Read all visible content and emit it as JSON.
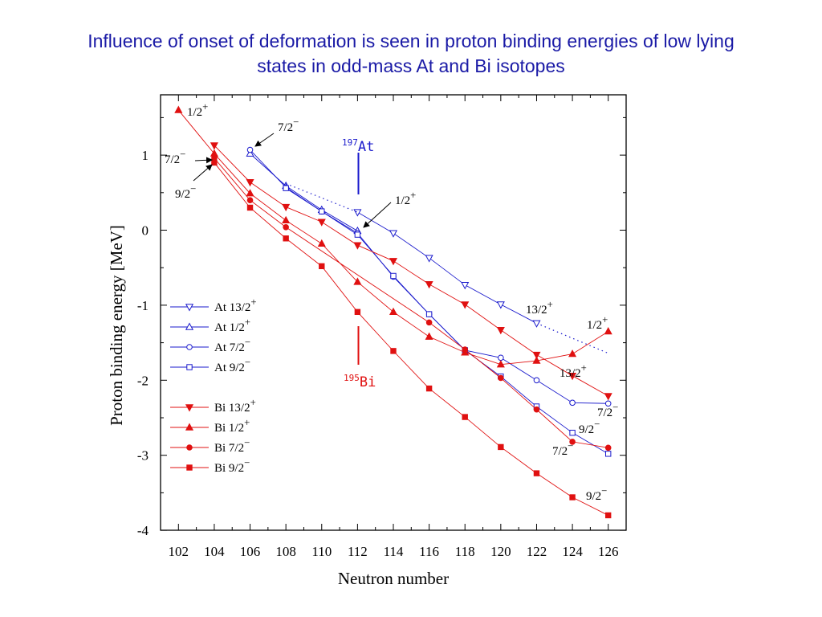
{
  "slide": {
    "title_line1": "Influence of onset of deformation is seen in proton binding energies of low lying",
    "title_line2": "states in odd-mass At and Bi isotopes"
  },
  "chart_data": {
    "type": "line",
    "xlabel": "Neutron number",
    "ylabel": "Proton binding energy [MeV]",
    "xlim": [
      101,
      127
    ],
    "ylim": [
      -4,
      1.6
    ],
    "x_ticks": [
      102,
      104,
      106,
      108,
      110,
      112,
      114,
      116,
      118,
      120,
      122,
      124,
      126
    ],
    "y_ticks": [
      1,
      0,
      -1,
      -2,
      -3,
      -4
    ],
    "grid": false,
    "legend_position": "left-middle",
    "colors": {
      "At": "#1a1acc",
      "Bi": "#e01010"
    },
    "series": [
      {
        "id": "at132",
        "name": "At 13/2",
        "sup": "+",
        "color": "#1a1acc",
        "marker": "triangle-down-open",
        "x": [
          112,
          114,
          116,
          118,
          120,
          122
        ],
        "y": [
          0.24,
          -0.04,
          -0.37,
          -0.73,
          -0.99,
          -1.24
        ],
        "dotted_tail": {
          "x": [
            122,
            126
          ],
          "y": [
            -1.24,
            -1.64
          ]
        }
      },
      {
        "id": "at12",
        "name": "At 1/2",
        "sup": "+",
        "color": "#1a1acc",
        "marker": "triangle-up-open",
        "x": [
          106,
          108,
          110,
          112
        ],
        "y": [
          1.02,
          0.59,
          0.27,
          -0.01
        ]
      },
      {
        "id": "at72",
        "name": "At 7/2",
        "sup": "−",
        "color": "#1a1acc",
        "marker": "circle-open",
        "x": [
          106,
          108,
          110,
          112,
          114,
          116,
          118,
          120,
          122,
          124,
          126
        ],
        "y": [
          1.07,
          0.57,
          0.25,
          -0.04,
          -0.62,
          -1.12,
          -1.6,
          -1.7,
          -2.0,
          -2.3,
          -2.31
        ]
      },
      {
        "id": "at92",
        "name": "At 9/2",
        "sup": "−",
        "color": "#1a1acc",
        "marker": "square-open",
        "x": [
          108,
          110,
          112,
          114,
          116,
          118,
          120,
          122,
          124,
          126
        ],
        "y": [
          0.56,
          0.25,
          -0.06,
          -0.61,
          -1.12,
          -1.6,
          -1.95,
          -2.35,
          -2.7,
          -2.98
        ]
      },
      {
        "id": "bi132",
        "name": "Bi 13/2",
        "sup": "+",
        "color": "#e01010",
        "marker": "triangle-down-filled",
        "x": [
          104,
          106,
          108,
          110,
          112,
          114,
          116,
          118,
          120,
          122,
          124,
          126
        ],
        "y": [
          1.13,
          0.64,
          0.31,
          0.11,
          -0.2,
          -0.41,
          -0.72,
          -0.99,
          -1.33,
          -1.66,
          -1.94,
          -2.21
        ]
      },
      {
        "id": "bi12",
        "name": "Bi 1/2",
        "sup": "+",
        "color": "#e01010",
        "marker": "triangle-up-filled",
        "x": [
          102,
          104,
          106,
          108,
          110,
          112,
          114,
          116,
          118,
          120,
          122,
          124,
          126
        ],
        "y": [
          1.6,
          1.02,
          0.49,
          0.13,
          -0.18,
          -0.69,
          -1.09,
          -1.42,
          -1.63,
          -1.79,
          -1.74,
          -1.65,
          -1.35
        ]
      },
      {
        "id": "bi72",
        "name": "Bi 7/2",
        "sup": "−",
        "color": "#e01010",
        "marker": "circle-filled",
        "x": [
          104,
          106,
          108,
          116,
          118,
          120,
          122,
          124,
          126
        ],
        "y": [
          0.96,
          0.4,
          0.04,
          -1.23,
          -1.59,
          -1.97,
          -2.39,
          -2.82,
          -2.9
        ]
      },
      {
        "id": "bi92",
        "name": "Bi 9/2",
        "sup": "−",
        "color": "#e01010",
        "marker": "square-filled",
        "x": [
          104,
          106,
          108,
          110,
          112,
          114,
          116,
          118,
          120,
          122,
          124,
          126
        ],
        "y": [
          0.9,
          0.3,
          -0.11,
          -0.48,
          -1.09,
          -1.61,
          -2.11,
          -2.49,
          -2.89,
          -3.24,
          -3.56,
          -3.8
        ]
      }
    ],
    "isotope_labels": [
      {
        "mass": "197",
        "element": "At",
        "color": "#1a1acc"
      },
      {
        "mass": "195",
        "element": "Bi",
        "color": "#e01010"
      }
    ],
    "annotations": [
      {
        "text": "1/2",
        "sup": "+"
      },
      {
        "text": "7/2",
        "sup": "−"
      },
      {
        "text": "7/2",
        "sup": "−"
      },
      {
        "text": "9/2",
        "sup": "−"
      },
      {
        "text": "1/2",
        "sup": "+"
      },
      {
        "text": "13/2",
        "sup": "+"
      },
      {
        "text": "1/2",
        "sup": "+"
      },
      {
        "text": "13/2",
        "sup": "+"
      },
      {
        "text": "7/2",
        "sup": "−"
      },
      {
        "text": "9/2",
        "sup": "−"
      },
      {
        "text": "7/2",
        "sup": "−"
      },
      {
        "text": "9/2",
        "sup": "−"
      }
    ]
  }
}
